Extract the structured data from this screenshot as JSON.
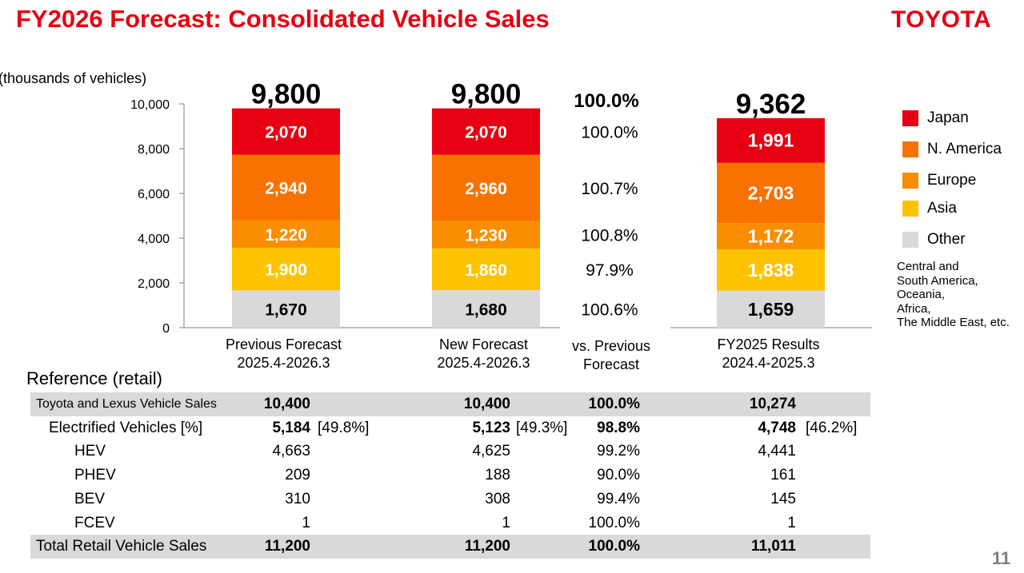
{
  "title": "FY2026 Forecast: Consolidated Vehicle Sales",
  "logo": "TOYOTA",
  "page_number": "11",
  "colors": {
    "brand": "#e60012",
    "japan": "#e60012",
    "n_america": "#f87200",
    "europe": "#fa8d00",
    "asia": "#fdc300",
    "other": "#d9d9d9",
    "table_shade": "#d9d9d9"
  },
  "chart_data": {
    "type": "bar",
    "stacked": true,
    "unit_label": "(thousands of vehicles)",
    "ylim": [
      0,
      10000
    ],
    "yticks": [
      "0",
      "2,000",
      "4,000",
      "6,000",
      "8,000",
      "10,000"
    ],
    "categories": [
      [
        "Previous Forecast",
        "2025.4-2026.3"
      ],
      [
        "New Forecast",
        "2025.4-2026.3"
      ],
      [
        "FY2025 Results",
        "2024.4-2025.3"
      ]
    ],
    "totals": [
      "9,800",
      "9,800",
      "9,362"
    ],
    "series": [
      {
        "name": "Other",
        "color": "#d9d9d9",
        "values": [
          1670,
          1680,
          1659
        ],
        "labels": [
          "1,670",
          "1,680",
          "1,659"
        ],
        "label_color": "#000000"
      },
      {
        "name": "Asia",
        "color": "#fdc300",
        "values": [
          1900,
          1860,
          1838
        ],
        "labels": [
          "1,900",
          "1,860",
          "1,838"
        ],
        "label_color": "#ffffff"
      },
      {
        "name": "Europe",
        "color": "#fa8d00",
        "values": [
          1220,
          1230,
          1172
        ],
        "labels": [
          "1,220",
          "1,230",
          "1,172"
        ],
        "label_color": "#ffffff"
      },
      {
        "name": "N. America",
        "color": "#f87200",
        "values": [
          2940,
          2960,
          2703
        ],
        "labels": [
          "2,940",
          "2,960",
          "2,703"
        ],
        "label_color": "#ffffff"
      },
      {
        "name": "Japan",
        "color": "#e60012",
        "values": [
          2070,
          2070,
          1991
        ],
        "labels": [
          "2,070",
          "2,070",
          "1,991"
        ],
        "label_color": "#ffffff"
      }
    ],
    "comparison": {
      "header": [
        "vs. Previous",
        "Forecast"
      ],
      "total": "100.0%",
      "values": [
        "100.6%",
        "97.9%",
        "100.8%",
        "100.7%",
        "100.0%"
      ]
    }
  },
  "legend": [
    {
      "label": "Japan",
      "color": "#e60012"
    },
    {
      "label": "N. America",
      "color": "#f87200"
    },
    {
      "label": "Europe",
      "color": "#fa8d00"
    },
    {
      "label": "Asia",
      "color": "#fdc300"
    },
    {
      "label": "Other",
      "color": "#d9d9d9"
    }
  ],
  "other_note": [
    "Central and",
    "South America,",
    "Oceania,",
    "Africa,",
    "The Middle East, etc."
  ],
  "reference": {
    "title": "Reference (retail)",
    "rows": [
      {
        "label": "Toyota and Lexus Vehicle Sales",
        "prev": "10,400",
        "prev_pct": "",
        "new": "10,400",
        "new_pct": "",
        "vs": "100.0%",
        "fy25": "10,274",
        "fy25_pct": ""
      },
      {
        "label": "Electrified Vehicles [%]",
        "prev": "5,184",
        "prev_pct": "[49.8%]",
        "new": "5,123",
        "new_pct": "[49.3%]",
        "vs": "98.8%",
        "fy25": "4,748",
        "fy25_pct": "[46.2%]"
      },
      {
        "label": "HEV",
        "prev": "4,663",
        "prev_pct": "",
        "new": "4,625",
        "new_pct": "",
        "vs": "99.2%",
        "fy25": "4,441",
        "fy25_pct": ""
      },
      {
        "label": "PHEV",
        "prev": "209",
        "prev_pct": "",
        "new": "188",
        "new_pct": "",
        "vs": "90.0%",
        "fy25": "161",
        "fy25_pct": ""
      },
      {
        "label": "BEV",
        "prev": "310",
        "prev_pct": "",
        "new": "308",
        "new_pct": "",
        "vs": "99.4%",
        "fy25": "145",
        "fy25_pct": ""
      },
      {
        "label": "FCEV",
        "prev": "1",
        "prev_pct": "",
        "new": "1",
        "new_pct": "",
        "vs": "100.0%",
        "fy25": "1",
        "fy25_pct": ""
      },
      {
        "label": "Total Retail Vehicle Sales",
        "prev": "11,200",
        "prev_pct": "",
        "new": "11,200",
        "new_pct": "",
        "vs": "100.0%",
        "fy25": "11,011",
        "fy25_pct": ""
      }
    ]
  }
}
